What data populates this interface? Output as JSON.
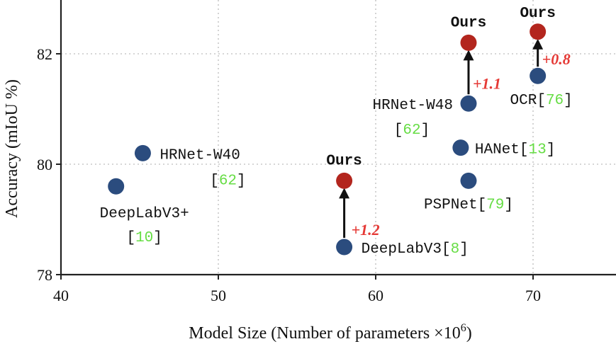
{
  "chart_data": {
    "type": "scatter",
    "xlabel": "Model Size (Number of parameters ×10",
    "xlabel_sup": "6",
    "xlabel_end": ")",
    "ylabel": "Accuracy (mIoU %)",
    "xlim": [
      40,
      75
    ],
    "ylim": [
      78,
      83
    ],
    "xticks": [
      40,
      50,
      60,
      70
    ],
    "yticks": [
      78,
      80,
      82
    ],
    "grid": true,
    "colors": {
      "baseline": "#2b4c7e",
      "ours": "#b3261e",
      "cite": "#66dd44",
      "gain": "#e53935"
    },
    "points": [
      {
        "name": "HRNet-W40",
        "cite": "62",
        "x": 45.2,
        "y": 80.2,
        "group": "baseline"
      },
      {
        "name": "DeepLabV3+",
        "cite": "10",
        "x": 43.5,
        "y": 79.6,
        "group": "baseline"
      },
      {
        "name": "DeepLabV3",
        "cite": "8",
        "x": 58.0,
        "y": 78.5,
        "group": "baseline"
      },
      {
        "name": "HRNet-W48",
        "cite": "62",
        "x": 65.9,
        "y": 81.1,
        "group": "baseline"
      },
      {
        "name": "HANet",
        "cite": "13",
        "x": 65.4,
        "y": 80.3,
        "group": "baseline"
      },
      {
        "name": "PSPNet",
        "cite": "79",
        "x": 65.9,
        "y": 79.7,
        "group": "baseline"
      },
      {
        "name": "OCR",
        "cite": "76",
        "x": 70.3,
        "y": 81.6,
        "group": "baseline"
      },
      {
        "name": "Ours",
        "x": 58.0,
        "y": 79.7,
        "group": "ours"
      },
      {
        "name": "Ours",
        "x": 65.9,
        "y": 82.2,
        "group": "ours"
      },
      {
        "name": "Ours",
        "x": 70.3,
        "y": 82.4,
        "group": "ours"
      }
    ],
    "improvements": [
      {
        "from_x": 58.0,
        "from_y": 78.5,
        "to_y": 79.7,
        "label": "+1.2"
      },
      {
        "from_x": 65.9,
        "from_y": 81.1,
        "to_y": 82.2,
        "label": "+1.1"
      },
      {
        "from_x": 70.3,
        "from_y": 81.6,
        "to_y": 82.4,
        "label": "+0.8"
      }
    ]
  }
}
